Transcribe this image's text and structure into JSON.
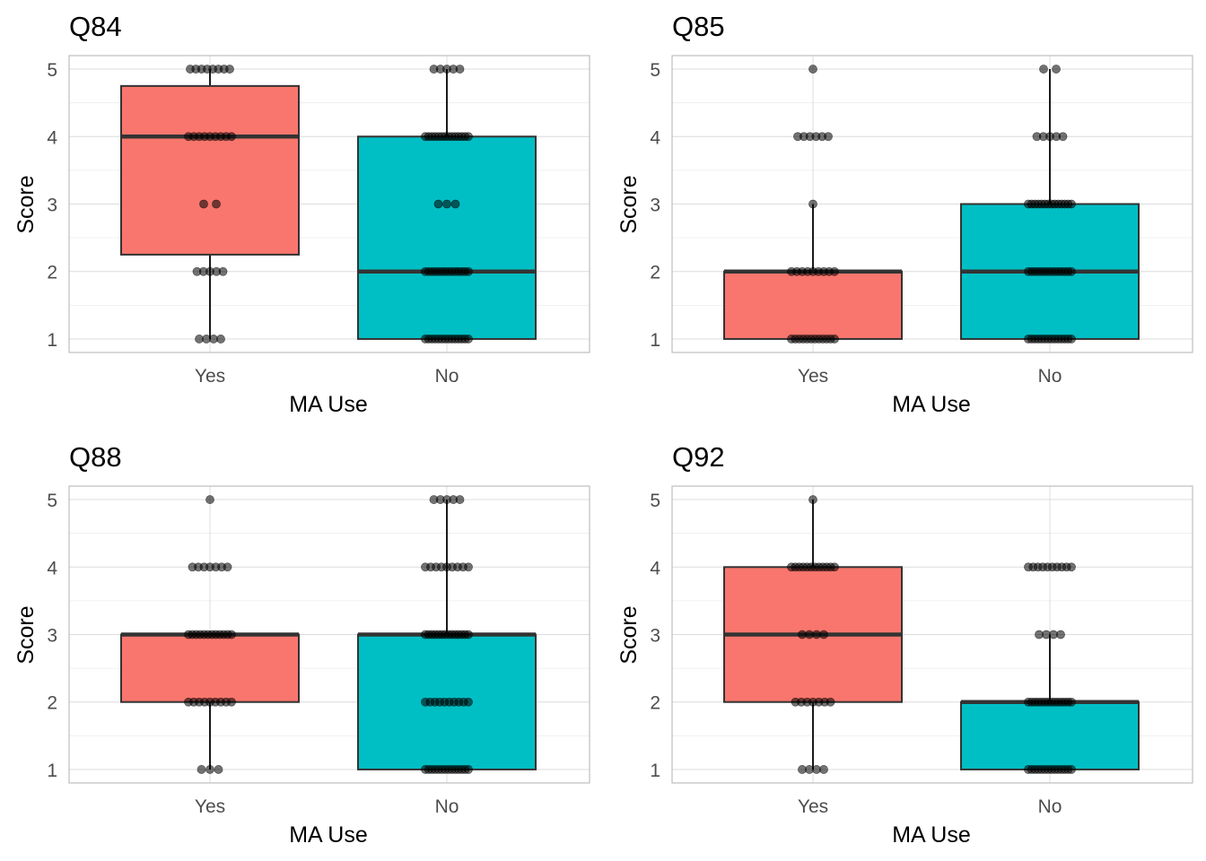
{
  "chart_data": [
    {
      "type": "box",
      "title": "Q84",
      "xlabel": "MA Use",
      "ylabel": "Score",
      "categories": [
        "Yes",
        "No"
      ],
      "yticks": [
        1,
        2,
        3,
        4,
        5
      ],
      "ylim": [
        0.8,
        5.2
      ],
      "colors": [
        "#F8766D",
        "#00BFC4"
      ],
      "boxes": [
        {
          "category": "Yes",
          "min": 1,
          "q1": 2.25,
          "median": 4,
          "q3": 4.75,
          "max": 5,
          "points": [
            {
              "y": 1,
              "n": 4
            },
            {
              "y": 2,
              "n": 5
            },
            {
              "y": 3,
              "n": 2
            },
            {
              "y": 4,
              "n": 9
            },
            {
              "y": 5,
              "n": 8
            }
          ]
        },
        {
          "category": "No",
          "min": 1,
          "q1": 1,
          "median": 2,
          "q3": 4,
          "max": 5,
          "points": [
            {
              "y": 1,
              "n": 14
            },
            {
              "y": 2,
              "n": 14
            },
            {
              "y": 3,
              "n": 3
            },
            {
              "y": 4,
              "n": 14
            },
            {
              "y": 5,
              "n": 5
            }
          ]
        }
      ]
    },
    {
      "type": "box",
      "title": "Q85",
      "xlabel": "MA Use",
      "ylabel": "Score",
      "categories": [
        "Yes",
        "No"
      ],
      "yticks": [
        1,
        2,
        3,
        4,
        5
      ],
      "ylim": [
        0.8,
        5.2
      ],
      "colors": [
        "#F8766D",
        "#00BFC4"
      ],
      "boxes": [
        {
          "category": "Yes",
          "min": 1,
          "q1": 1,
          "median": 2,
          "q3": 2,
          "max": 3,
          "points": [
            {
              "y": 1,
              "n": 12
            },
            {
              "y": 2,
              "n": 9
            },
            {
              "y": 3,
              "n": 1
            },
            {
              "y": 4,
              "n": 6
            },
            {
              "y": 5,
              "n": 1
            }
          ]
        },
        {
          "category": "No",
          "min": 1,
          "q1": 1,
          "median": 2,
          "q3": 3,
          "max": 5,
          "points": [
            {
              "y": 1,
              "n": 14
            },
            {
              "y": 2,
              "n": 14
            },
            {
              "y": 3,
              "n": 14
            },
            {
              "y": 4,
              "n": 5
            },
            {
              "y": 5,
              "n": 2
            }
          ]
        }
      ]
    },
    {
      "type": "box",
      "title": "Q88",
      "xlabel": "MA Use",
      "ylabel": "Score",
      "categories": [
        "Yes",
        "No"
      ],
      "yticks": [
        1,
        2,
        3,
        4,
        5
      ],
      "ylim": [
        0.8,
        5.2
      ],
      "colors": [
        "#F8766D",
        "#00BFC4"
      ],
      "boxes": [
        {
          "category": "Yes",
          "min": 1,
          "q1": 2,
          "median": 3,
          "q3": 3,
          "max": 3,
          "points": [
            {
              "y": 1,
              "n": 3
            },
            {
              "y": 2,
              "n": 9
            },
            {
              "y": 3,
              "n": 12
            },
            {
              "y": 4,
              "n": 7
            },
            {
              "y": 5,
              "n": 1
            }
          ]
        },
        {
          "category": "No",
          "min": 1,
          "q1": 1,
          "median": 3,
          "q3": 3,
          "max": 5,
          "points": [
            {
              "y": 1,
              "n": 14
            },
            {
              "y": 2,
              "n": 10
            },
            {
              "y": 3,
              "n": 14
            },
            {
              "y": 4,
              "n": 9
            },
            {
              "y": 5,
              "n": 5
            }
          ]
        }
      ]
    },
    {
      "type": "box",
      "title": "Q92",
      "xlabel": "MA Use",
      "ylabel": "Score",
      "categories": [
        "Yes",
        "No"
      ],
      "yticks": [
        1,
        2,
        3,
        4,
        5
      ],
      "ylim": [
        0.8,
        5.2
      ],
      "colors": [
        "#F8766D",
        "#00BFC4"
      ],
      "boxes": [
        {
          "category": "Yes",
          "min": 1,
          "q1": 2,
          "median": 3,
          "q3": 4,
          "max": 5,
          "points": [
            {
              "y": 1,
              "n": 4
            },
            {
              "y": 2,
              "n": 7
            },
            {
              "y": 3,
              "n": 4
            },
            {
              "y": 4,
              "n": 12
            },
            {
              "y": 5,
              "n": 1
            }
          ]
        },
        {
          "category": "No",
          "min": 1,
          "q1": 1,
          "median": 2,
          "q3": 2,
          "max": 3,
          "points": [
            {
              "y": 1,
              "n": 14
            },
            {
              "y": 2,
              "n": 14
            },
            {
              "y": 3,
              "n": 4
            },
            {
              "y": 4,
              "n": 10
            }
          ]
        }
      ]
    }
  ]
}
